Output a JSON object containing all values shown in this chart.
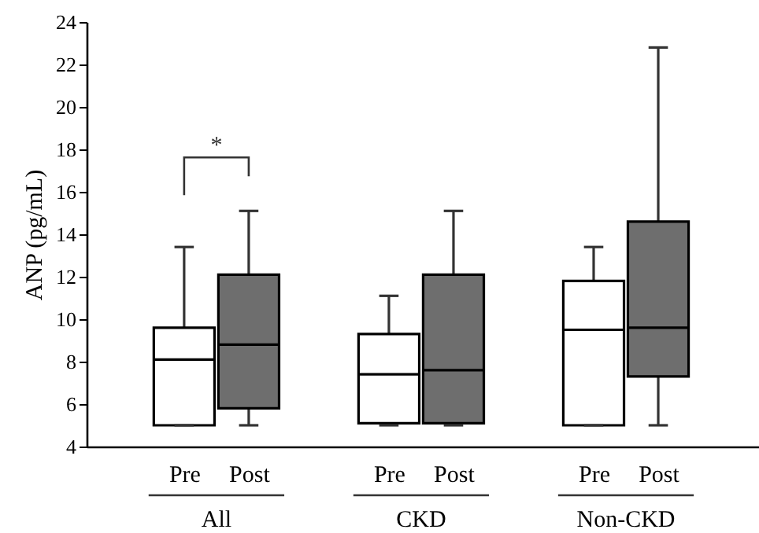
{
  "chart_data": {
    "type": "box",
    "ylabel": "ANP (pg/mL)",
    "categories": [
      "Pre",
      "Post",
      "Pre",
      "Post",
      "Pre",
      "Post"
    ],
    "colors": [
      "#ffffff",
      "#6e6e6e",
      "#ffffff",
      "#6e6e6e",
      "#ffffff",
      "#6e6e6e"
    ],
    "boxes": [
      {
        "low": 5,
        "q1": 5,
        "median": 8.1,
        "q3": 9.6,
        "high": 13.4
      },
      {
        "low": 5,
        "q1": 5.8,
        "median": 8.8,
        "q3": 12.1,
        "high": 15.1
      },
      {
        "low": 5,
        "q1": 5.1,
        "median": 7.4,
        "q3": 9.3,
        "high": 11.1
      },
      {
        "low": 5,
        "q1": 5.1,
        "median": 7.6,
        "q3": 12.1,
        "high": 15.1
      },
      {
        "low": 5,
        "q1": 5,
        "median": 9.5,
        "q3": 11.8,
        "high": 13.4
      },
      {
        "low": 5,
        "q1": 7.3,
        "median": 9.6,
        "q3": 14.6,
        "high": 22.8
      }
    ],
    "ylim": [
      4,
      24
    ],
    "yticks": [
      4,
      6,
      8,
      10,
      12,
      14,
      16,
      18,
      20,
      22,
      24
    ],
    "grid": false,
    "annotations": [
      "*",
      "All",
      "CKD",
      "Non-CKD"
    ]
  }
}
